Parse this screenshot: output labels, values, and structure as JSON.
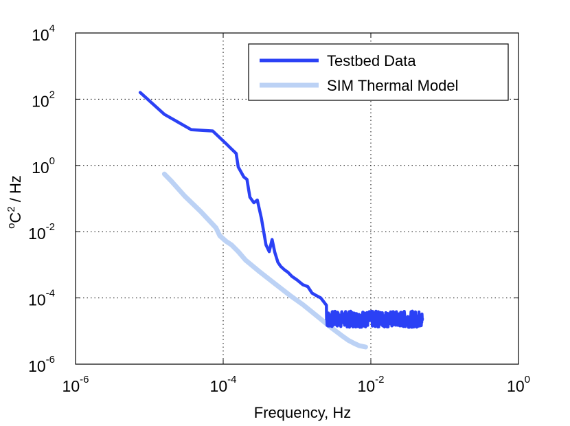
{
  "chart_data": {
    "type": "line",
    "title": "",
    "xlabel": "Frequency,   Hz",
    "ylabel": {
      "base": "o",
      "unit": "C",
      "exp": "2",
      "suffix": " / Hz"
    },
    "xscale": "log",
    "yscale": "log",
    "xlim": [
      1e-06,
      1
    ],
    "ylim": [
      1e-06,
      10000
    ],
    "grid": true,
    "legend_position": "top-right",
    "xticks": [
      {
        "base": "10",
        "exp": "-6",
        "value": 1e-06
      },
      {
        "base": "10",
        "exp": "-4",
        "value": 0.0001
      },
      {
        "base": "10",
        "exp": "-2",
        "value": 0.01
      },
      {
        "base": "10",
        "exp": "0",
        "value": 1
      }
    ],
    "yticks": [
      {
        "base": "10",
        "exp": "-6",
        "value": 1e-06
      },
      {
        "base": "10",
        "exp": "-4",
        "value": 0.0001
      },
      {
        "base": "10",
        "exp": "-2",
        "value": 0.01
      },
      {
        "base": "10",
        "exp": "0",
        "value": 1
      },
      {
        "base": "10",
        "exp": "2",
        "value": 100
      },
      {
        "base": "10",
        "exp": "4",
        "value": 10000
      }
    ],
    "series": [
      {
        "name": "Testbed Data",
        "color": "#2b41f5",
        "noisy_tail": {
          "from": 0.0025,
          "to": 0.05,
          "low": 1.3e-05,
          "high": 4e-05
        },
        "x": [
          7.5e-06,
          1.6e-05,
          3.7e-05,
          7.2e-05,
          0.00011,
          0.000125,
          0.00015,
          0.00016,
          0.00019,
          0.00021,
          0.00023,
          0.00026,
          0.00029,
          0.00033,
          0.00038,
          0.00042,
          0.00046,
          0.0005,
          0.00055,
          0.0006,
          0.00068,
          0.00075,
          0.00085,
          0.001,
          0.0012,
          0.0014,
          0.0016,
          0.0018,
          0.0021,
          0.0025
        ],
        "y": [
          160,
          35,
          12,
          11,
          4.5,
          3.4,
          2.3,
          0.9,
          0.45,
          0.38,
          0.11,
          0.075,
          0.09,
          0.025,
          0.004,
          0.0025,
          0.0058,
          0.0024,
          0.0012,
          0.0009,
          0.0007,
          0.0006,
          0.00045,
          0.00035,
          0.00025,
          0.00022,
          0.00014,
          0.00012,
          0.0001,
          6e-05
        ]
      },
      {
        "name": "SIM Thermal Model",
        "color": "#bcd2f5",
        "x": [
          1.6e-05,
          2e-05,
          3e-05,
          5e-05,
          8e-05,
          9e-05,
          0.00011,
          0.00013,
          0.00016,
          0.0002,
          0.0003,
          0.0005,
          0.0008,
          0.0012,
          0.002,
          0.003,
          0.004,
          0.005,
          0.006,
          0.007,
          0.0085
        ],
        "y": [
          0.55,
          0.33,
          0.12,
          0.04,
          0.013,
          0.0075,
          0.0051,
          0.004,
          0.0025,
          0.0014,
          0.00066,
          0.00027,
          0.00012,
          6.3e-05,
          2.5e-05,
          1.2e-05,
          7.4e-06,
          5.2e-06,
          4.2e-06,
          3.6e-06,
          3.3e-06
        ]
      }
    ]
  }
}
